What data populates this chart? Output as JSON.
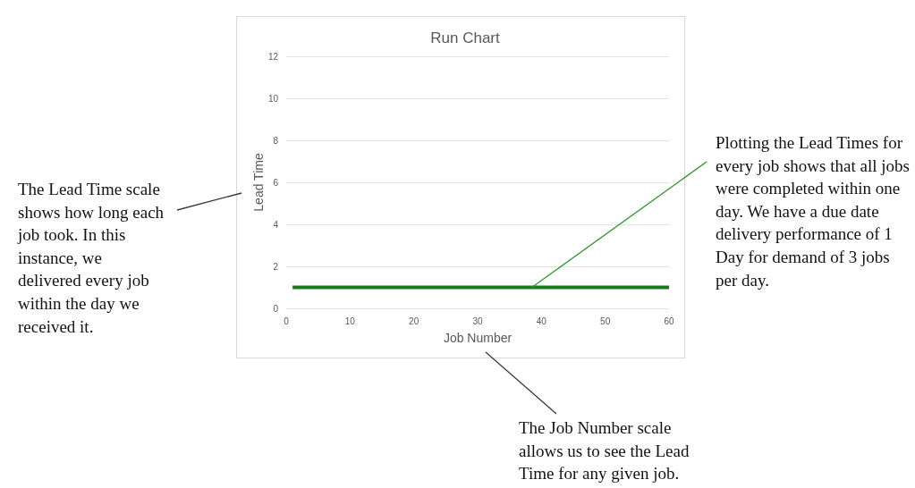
{
  "chart_data": {
    "type": "line",
    "title": "Run Chart",
    "xlabel": "Job Number",
    "ylabel": "Lead Time",
    "x": [
      1,
      60
    ],
    "values": [
      1,
      1
    ],
    "color": "#187a18",
    "xlim": [
      0,
      60
    ],
    "xticks": [
      0,
      10,
      20,
      30,
      40,
      50,
      60
    ],
    "ylim": [
      0,
      12
    ],
    "yticks": [
      0,
      2,
      4,
      6,
      8,
      10,
      12
    ],
    "grid": "y",
    "annotations": [
      "The Lead Time scale shows how long each job took. In this instance, we delivered every job within the day we received it.",
      {
        "text": "Plotting the Lead Times for every job shows that all jobs were completed within one day. We have a due date delivery performance of 1 Day for demand of 3 jobs per day.",
        "x": 38.5,
        "y": 1
      },
      "The Job Number scale allows us to see the Lead Time for any given job."
    ]
  }
}
